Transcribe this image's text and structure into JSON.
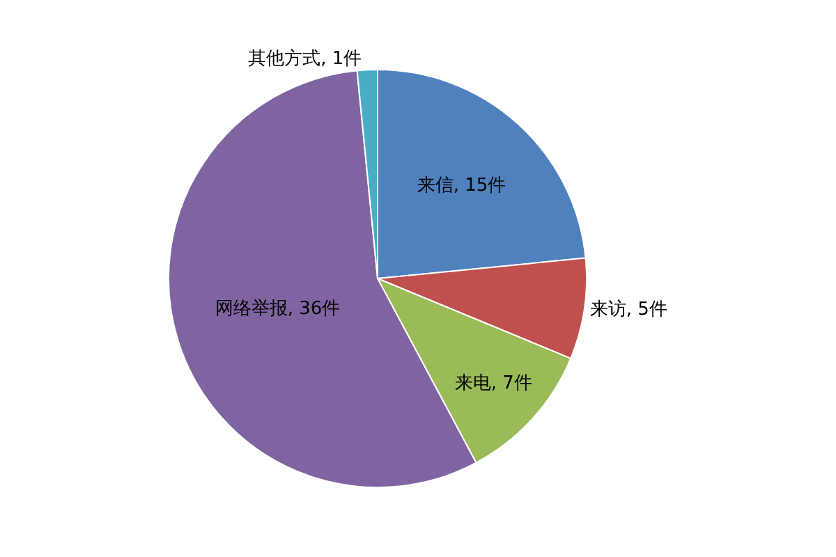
{
  "chart_data": {
    "type": "pie",
    "categories": [
      "来信",
      "来访",
      "来电",
      "网络举报",
      "其他方式"
    ],
    "values": [
      15,
      5,
      7,
      36,
      1
    ],
    "colors": [
      "#4f81bd",
      "#c0504d",
      "#9bbb59",
      "#8064a2",
      "#4bacc6"
    ],
    "value_labels": [
      "15件",
      "5件",
      "7件",
      "36件",
      "1件"
    ],
    "legend": false
  }
}
